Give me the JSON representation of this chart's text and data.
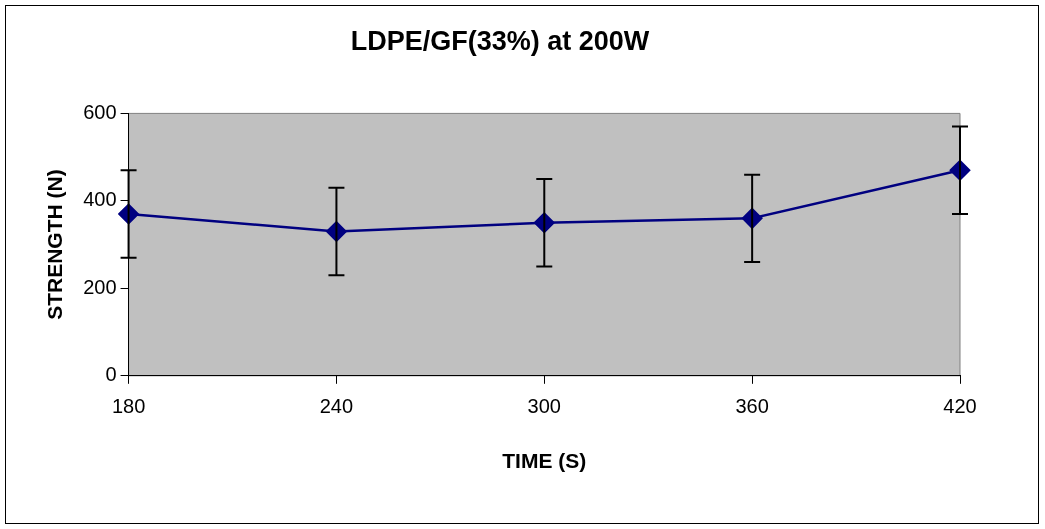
{
  "chart_data": {
    "type": "line",
    "title": "LDPE/GF(33%) at 200W",
    "xlabel": "TIME (S)",
    "ylabel": "STRENGTH (N)",
    "categories": [
      "180",
      "240",
      "300",
      "360",
      "420"
    ],
    "series": [
      {
        "color": "#000080",
        "values": [
          370,
          330,
          350,
          360,
          470
        ],
        "errors": [
          100,
          100,
          100,
          100,
          100
        ]
      }
    ],
    "ylim": [
      0,
      600
    ],
    "yticks": [
      0,
      200,
      400,
      600
    ],
    "grid": false,
    "legend": false,
    "marker": "diamond",
    "line_style": "solid"
  }
}
